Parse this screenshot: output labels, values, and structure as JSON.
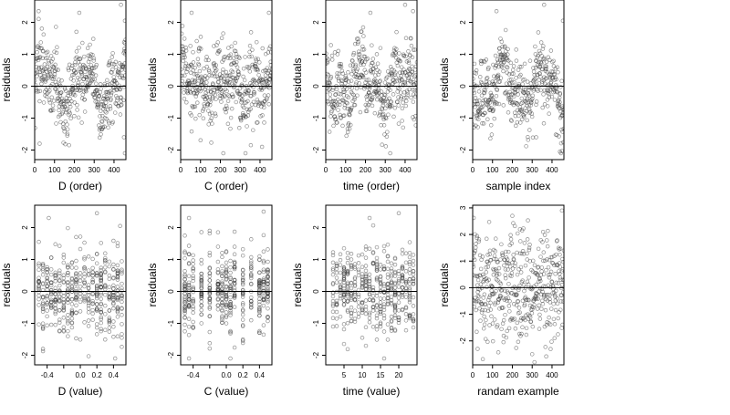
{
  "chart_data": [
    {
      "type": "scatter",
      "id": "p1",
      "xlabel": "D (order)",
      "ylabel": "residuals",
      "xlim": [
        0,
        460
      ],
      "ylim": [
        -2.3,
        2.7
      ],
      "xticks": [
        0,
        100,
        200,
        300,
        400
      ],
      "yticks": [
        -2,
        -1,
        0,
        1,
        2
      ],
      "hline": 0,
      "points": {
        "n": 460,
        "x": {
          "kind": "index",
          "max": 460
        },
        "y": {
          "kind": "wave",
          "amp": 0.55,
          "amp2": 0.35,
          "sd": 0.55,
          "min": -2.1,
          "max": 2.55
        },
        "highlights": [
          [
            20,
            2.35
          ],
          [
            225,
            2.3
          ],
          [
            435,
            2.55
          ],
          [
            455,
            2.05
          ],
          [
            25,
            -1.8
          ],
          [
            455,
            -2.1
          ],
          [
            450,
            -1.6
          ]
        ]
      }
    },
    {
      "type": "scatter",
      "id": "p2",
      "xlabel": "C (order)",
      "ylabel": "residuals",
      "xlim": [
        0,
        460
      ],
      "ylim": [
        -2.3,
        2.7
      ],
      "xticks": [
        0,
        100,
        200,
        300,
        400
      ],
      "yticks": [
        -2,
        -1,
        0,
        1,
        2
      ],
      "hline": 0,
      "points": {
        "n": 460,
        "x": {
          "kind": "index",
          "max": 460
        },
        "y": {
          "kind": "wave",
          "amp": 0.35,
          "amp2": 0.3,
          "sd": 0.6,
          "min": -2.1,
          "max": 2.35
        },
        "highlights": [
          [
            55,
            2.3
          ],
          [
            445,
            2.3
          ],
          [
            215,
            -2.1
          ],
          [
            410,
            -1.9
          ]
        ]
      }
    },
    {
      "type": "scatter",
      "id": "p3",
      "xlabel": "time (order)",
      "ylabel": "residuals",
      "xlim": [
        0,
        460
      ],
      "ylim": [
        -2.3,
        2.7
      ],
      "xticks": [
        0,
        100,
        200,
        300,
        400
      ],
      "yticks": [
        -2,
        -1,
        0,
        1,
        2
      ],
      "hline": 0,
      "points": {
        "n": 460,
        "x": {
          "kind": "index",
          "max": 460
        },
        "y": {
          "kind": "wave",
          "amp": 0.4,
          "amp2": 0.35,
          "sd": 0.6,
          "min": -2.1,
          "max": 2.55
        },
        "highlights": [
          [
            225,
            2.3
          ],
          [
            400,
            2.55
          ],
          [
            440,
            2.35
          ],
          [
            325,
            -2.1
          ]
        ]
      }
    },
    {
      "type": "scatter",
      "id": "p4",
      "xlabel": "sample index",
      "ylabel": "residuals",
      "xlim": [
        0,
        460
      ],
      "ylim": [
        -2.3,
        2.7
      ],
      "xticks": [
        0,
        100,
        200,
        300,
        400
      ],
      "yticks": [
        -2,
        -1,
        0,
        1,
        2
      ],
      "hline": 0,
      "points": {
        "n": 460,
        "x": {
          "kind": "index",
          "max": 460
        },
        "y": {
          "kind": "wave",
          "amp": 0.6,
          "amp2": 0.3,
          "sd": 0.55,
          "min": -2.1,
          "max": 2.55
        },
        "highlights": [
          [
            120,
            2.35
          ],
          [
            360,
            2.55
          ],
          [
            455,
            2.05
          ],
          [
            440,
            -2.05
          ],
          [
            320,
            -1.6
          ]
        ]
      }
    },
    {
      "type": "scatter",
      "id": "p5",
      "xlabel": "D (value)",
      "ylabel": "residuals",
      "xlim": [
        -0.55,
        0.55
      ],
      "ylim": [
        -2.3,
        2.7
      ],
      "xticks": [
        -0.4,
        -0.2,
        0.0,
        0.2,
        0.4
      ],
      "xtick_labels": [
        "-0.4",
        "",
        "0.0",
        "0.2",
        "0.4"
      ],
      "yticks": [
        -2,
        -1,
        0,
        1,
        2
      ],
      "hline": 0,
      "points": {
        "n": 460,
        "x": {
          "kind": "columns",
          "values": [
            -0.5,
            -0.45,
            -0.4,
            -0.35,
            -0.3,
            -0.25,
            -0.2,
            -0.15,
            -0.1,
            -0.05,
            0.0,
            0.05,
            0.1,
            0.15,
            0.2,
            0.25,
            0.3,
            0.35,
            0.4,
            0.45,
            0.5
          ]
        },
        "y": {
          "kind": "normal",
          "sd": 0.65,
          "min": -2.1,
          "max": 2.5
        },
        "highlights": [
          [
            -0.38,
            2.3
          ],
          [
            0.2,
            2.45
          ],
          [
            0.48,
            2.05
          ],
          [
            -0.45,
            -1.8
          ],
          [
            0.42,
            -2.1
          ]
        ]
      }
    },
    {
      "type": "scatter",
      "id": "p6",
      "xlabel": "C (value)",
      "ylabel": "residuals",
      "xlim": [
        -0.55,
        0.55
      ],
      "ylim": [
        -2.3,
        2.7
      ],
      "xticks": [
        -0.4,
        -0.2,
        0.0,
        0.2,
        0.4
      ],
      "xtick_labels": [
        "-0.4",
        "",
        "0.0",
        "0.2",
        "0.4"
      ],
      "yticks": [
        -2,
        -1,
        0,
        1,
        2
      ],
      "hline": 0,
      "points": {
        "n": 460,
        "x": {
          "kind": "columns",
          "values": [
            -0.5,
            -0.45,
            -0.4,
            -0.3,
            -0.2,
            -0.1,
            -0.05,
            0.0,
            0.05,
            0.1,
            0.2,
            0.3,
            0.4,
            0.45,
            0.5
          ]
        },
        "y": {
          "kind": "normal",
          "sd": 0.65,
          "min": -2.1,
          "max": 2.5
        },
        "highlights": [
          [
            -0.45,
            2.3
          ],
          [
            0.45,
            2.5
          ],
          [
            0.05,
            -2.1
          ]
        ]
      }
    },
    {
      "type": "scatter",
      "id": "p7",
      "xlabel": "time (value)",
      "ylabel": "residuals",
      "xlim": [
        0,
        25
      ],
      "ylim": [
        -2.3,
        2.7
      ],
      "xticks": [
        5,
        10,
        15,
        20
      ],
      "yticks": [
        -2,
        -1,
        0,
        1,
        2
      ],
      "hline": 0,
      "points": {
        "n": 460,
        "x": {
          "kind": "columns",
          "values": [
            2,
            3,
            4,
            5,
            6,
            7,
            8,
            9,
            10,
            11,
            12,
            13,
            14,
            15,
            16,
            17,
            18,
            19,
            20,
            21,
            22,
            23,
            24
          ]
        },
        "y": {
          "kind": "normal",
          "sd": 0.65,
          "min": -2.1,
          "max": 2.5
        },
        "highlights": [
          [
            12,
            2.3
          ],
          [
            20,
            2.45
          ],
          [
            16,
            -2.1
          ]
        ]
      }
    },
    {
      "type": "scatter",
      "id": "p8",
      "xlabel": "randam example",
      "ylabel": "residuals",
      "xlim": [
        0,
        460
      ],
      "ylim": [
        -2.9,
        3.1
      ],
      "xticks": [
        0,
        100,
        200,
        300,
        400
      ],
      "yticks": [
        -2,
        -1,
        0,
        1,
        2,
        3
      ],
      "hline": 0,
      "points": {
        "n": 460,
        "x": {
          "kind": "index",
          "max": 460
        },
        "y": {
          "kind": "normal",
          "sd": 1.0,
          "min": -2.8,
          "max": 3.0
        },
        "highlights": [
          [
            450,
            2.9
          ],
          [
            200,
            2.7
          ],
          [
            25,
            -2.3
          ],
          [
            300,
            -2.5
          ]
        ]
      }
    }
  ]
}
